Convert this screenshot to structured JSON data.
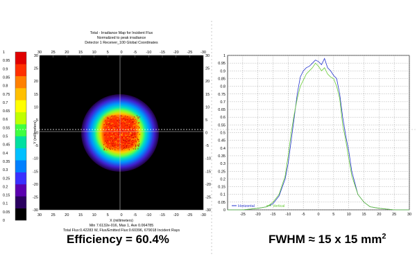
{
  "chart_data": [
    {
      "type": "heatmap",
      "title_lines": [
        "Total - Irradiance Map for Incident Flux",
        "Normalized to peak irradiance",
        "Detector 1 Receiver_100    Global Coordinates"
      ],
      "xlabel": "X (millimeters)",
      "ylabel": "Y (millimeters)",
      "xlim": [
        30,
        -30
      ],
      "ylim": [
        -30,
        30
      ],
      "x_ticks": [
        30,
        25,
        20,
        15,
        10,
        5,
        0,
        -5,
        -10,
        -15,
        -20,
        -25,
        -30
      ],
      "y_ticks": [
        30,
        25,
        20,
        15,
        10,
        5,
        0,
        -5,
        -10,
        -15,
        -20,
        -25,
        -30
      ],
      "colorbar_ticks": [
        1,
        0.95,
        0.9,
        0.85,
        0.8,
        0.75,
        0.7,
        0.65,
        0.6,
        0.55,
        0.5,
        0.45,
        0.4,
        0.35,
        0.3,
        0.25,
        0.2,
        0.15,
        0.1,
        0.05,
        0
      ],
      "colors": [
        "#000000",
        "#2a0060",
        "#5a00b0",
        "#3a30ff",
        "#0080ff",
        "#00c0ff",
        "#00e0a0",
        "#40ff40",
        "#c0ff00",
        "#ffff00",
        "#ffc000",
        "#ff8000",
        "#ff3000",
        "#e00000"
      ],
      "stats_lines": [
        "Min 7.6132e-016, Max 1, Ave 0.064785",
        "Total Flux:0.42283 W, Flux/Emitted Flux:0.60396, 679018 Incident Rays"
      ]
    },
    {
      "type": "line",
      "xlim": [
        -30,
        30
      ],
      "ylim": [
        0,
        1
      ],
      "x_ticks": [
        -25,
        -20,
        -15,
        -10,
        -5,
        0,
        5,
        10,
        15,
        20,
        25,
        30
      ],
      "y_ticks": [
        1,
        0.95,
        0.9,
        0.85,
        0.8,
        0.75,
        0.7,
        0.65,
        0.6,
        0.55,
        0.5,
        0.45,
        0.4,
        0.35,
        0.3,
        0.25,
        0.2,
        0.15,
        0.1,
        0.05,
        0
      ],
      "grid": true,
      "legend": "bottom-left",
      "series": [
        {
          "name": "Horizontal",
          "color": "#2233cc",
          "x": [
            -30,
            -25,
            -20,
            -17,
            -15,
            -13,
            -11,
            -10,
            -9,
            -8,
            -7,
            -6,
            -5,
            -4,
            -3,
            -2,
            -1,
            0,
            1,
            2,
            3,
            4,
            5,
            6,
            7,
            8,
            9,
            10,
            11,
            13,
            15,
            17,
            20,
            25,
            30
          ],
          "y": [
            0.0,
            0.0,
            0.01,
            0.02,
            0.04,
            0.09,
            0.2,
            0.3,
            0.45,
            0.6,
            0.75,
            0.86,
            0.9,
            0.92,
            0.93,
            0.95,
            0.97,
            0.96,
            0.94,
            0.98,
            0.92,
            0.9,
            0.87,
            0.85,
            0.75,
            0.6,
            0.48,
            0.38,
            0.25,
            0.1,
            0.05,
            0.02,
            0.01,
            0.0,
            0.0
          ]
        },
        {
          "name": "Vertical",
          "color": "#66cc33",
          "x": [
            -30,
            -25,
            -20,
            -17,
            -15,
            -13,
            -11,
            -10,
            -9,
            -8,
            -7,
            -6,
            -5,
            -4,
            -3,
            -2,
            -1,
            0,
            1,
            2,
            3,
            4,
            5,
            6,
            7,
            8,
            9,
            10,
            11,
            13,
            15,
            17,
            20,
            25,
            30
          ],
          "y": [
            0.0,
            0.0,
            0.01,
            0.02,
            0.05,
            0.1,
            0.22,
            0.35,
            0.5,
            0.62,
            0.72,
            0.8,
            0.84,
            0.88,
            0.9,
            0.92,
            0.95,
            0.93,
            0.9,
            0.92,
            0.88,
            0.86,
            0.85,
            0.8,
            0.72,
            0.55,
            0.45,
            0.33,
            0.22,
            0.1,
            0.05,
            0.02,
            0.01,
            0.0,
            0.0
          ]
        }
      ]
    }
  ],
  "captions": {
    "left": "Efficiency = 60.4%",
    "right_text": "FWHM ≈ 15 x 15 mm",
    "right_sup": "2"
  }
}
